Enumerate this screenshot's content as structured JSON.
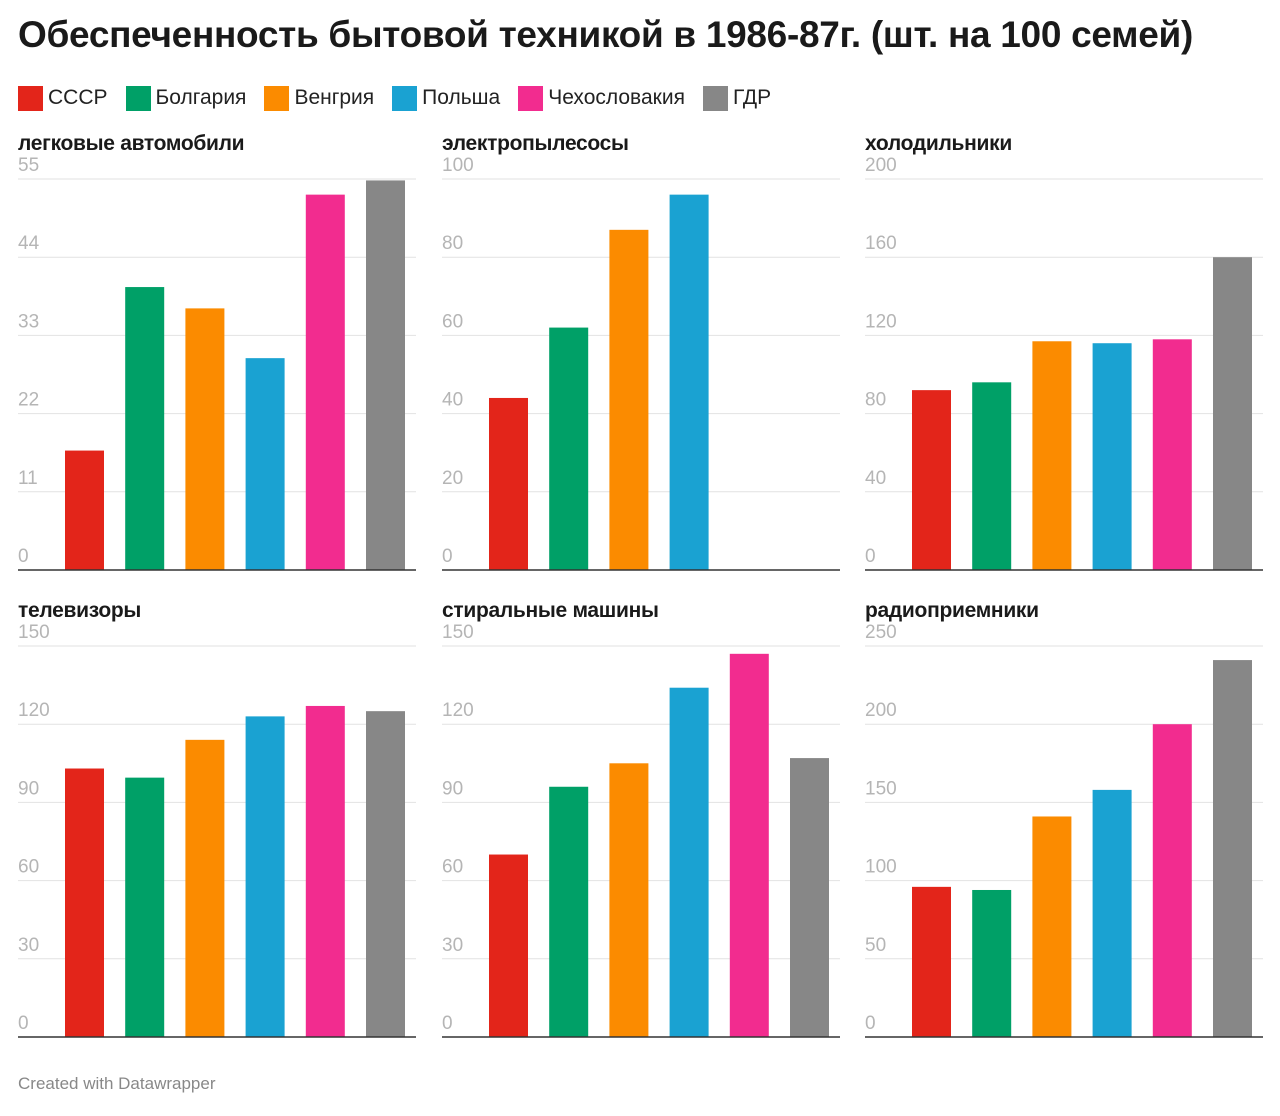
{
  "title": "Обеспеченность бытовой техникой в 1986-87г. (шт. на 100 семей)",
  "footer": "Created with Datawrapper",
  "colors": {
    "grid": "#e2e2e2",
    "baseline": "#333333",
    "tick_text": "#b5b5b5"
  },
  "legend": [
    {
      "label": "СССР",
      "color": "#e3251a"
    },
    {
      "label": "Болгария",
      "color": "#00a067"
    },
    {
      "label": "Венгрия",
      "color": "#fb8b00"
    },
    {
      "label": "Польша",
      "color": "#1aa2d2"
    },
    {
      "label": "Чехословакия",
      "color": "#f22c8f"
    },
    {
      "label": "ГДР",
      "color": "#878787"
    }
  ],
  "chart_data": [
    {
      "type": "bar",
      "title": "легковые автомобили",
      "categories": [
        "СССР",
        "Болгария",
        "Венгрия",
        "Польша",
        "Чехословакия",
        "ГДР"
      ],
      "values": [
        16.8,
        39.8,
        36.8,
        29.8,
        52.8,
        54.8
      ],
      "ylim": [
        0,
        55
      ],
      "yticks": [
        0,
        11,
        22,
        33,
        44,
        55
      ],
      "grid": true
    },
    {
      "type": "bar",
      "title": "электропылесосы",
      "categories": [
        "СССР",
        "Болгария",
        "Венгрия",
        "Польша",
        "Чехословакия",
        "ГДР"
      ],
      "values": [
        44,
        62,
        87,
        96,
        null,
        null
      ],
      "ylim": [
        0,
        100
      ],
      "yticks": [
        0,
        20,
        40,
        60,
        80,
        100
      ],
      "grid": true
    },
    {
      "type": "bar",
      "title": "холодильники",
      "categories": [
        "СССР",
        "Болгария",
        "Венгрия",
        "Польша",
        "Чехословакия",
        "ГДР"
      ],
      "values": [
        92,
        96,
        117,
        116,
        118,
        160
      ],
      "ylim": [
        0,
        200
      ],
      "yticks": [
        0,
        40,
        80,
        120,
        160,
        200
      ],
      "grid": true
    },
    {
      "type": "bar",
      "title": "телевизоры",
      "categories": [
        "СССР",
        "Болгария",
        "Венгрия",
        "Польша",
        "Чехословакия",
        "ГДР"
      ],
      "values": [
        103,
        99.5,
        114,
        123,
        127,
        125
      ],
      "ylim": [
        0,
        150
      ],
      "yticks": [
        0,
        30,
        60,
        90,
        120,
        150
      ],
      "grid": true
    },
    {
      "type": "bar",
      "title": "стиральные машины",
      "categories": [
        "СССР",
        "Болгария",
        "Венгрия",
        "Польша",
        "Чехословакия",
        "ГДР"
      ],
      "values": [
        70,
        96,
        105,
        134,
        147,
        107
      ],
      "ylim": [
        0,
        150
      ],
      "yticks": [
        0,
        30,
        60,
        90,
        120,
        150
      ],
      "grid": true
    },
    {
      "type": "bar",
      "title": "радиоприемники",
      "categories": [
        "СССР",
        "Болгария",
        "Венгрия",
        "Польша",
        "Чехословакия",
        "ГДР"
      ],
      "values": [
        96,
        94,
        141,
        158,
        200,
        241
      ],
      "ylim": [
        0,
        250
      ],
      "yticks": [
        0,
        50,
        100,
        150,
        200,
        250
      ],
      "grid": true
    }
  ]
}
